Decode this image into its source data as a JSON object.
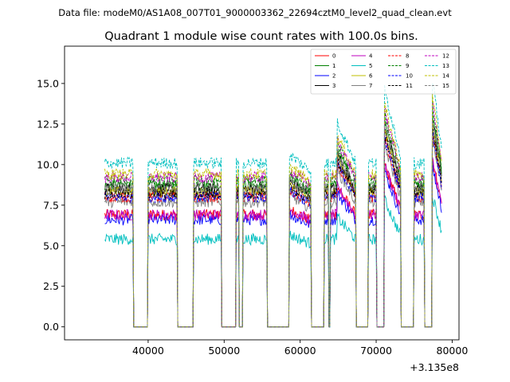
{
  "chart_data": {
    "type": "line",
    "suptitle": "Data file: modeM0/AS1A08_007T01_9000003362_22694cztM0_level2_quad_clean.evt",
    "title": "Quadrant 1 module wise count rates with 100.0s bins.",
    "xlabel": "",
    "ylabel": "",
    "x_offset_label": "+3.135e8",
    "xlim": [
      29000,
      80900
    ],
    "ylim": [
      -0.8,
      17.3
    ],
    "x_ticks": [
      40000,
      50000,
      60000,
      70000,
      80000
    ],
    "x_tick_labels": [
      "40000",
      "50000",
      "60000",
      "70000",
      "80000"
    ],
    "y_ticks": [
      0.0,
      2.5,
      5.0,
      7.5,
      10.0,
      12.5,
      15.0
    ],
    "y_tick_labels": [
      "0.0",
      "2.5",
      "5.0",
      "7.5",
      "10.0",
      "12.5",
      "15.0"
    ],
    "legend_position": "upper-right",
    "segments": [
      {
        "start": 34300,
        "end": 38000,
        "trend": [
          0.0,
          0.0
        ]
      },
      {
        "start": 40000,
        "end": 43800,
        "trend": [
          0.0,
          0.0
        ]
      },
      {
        "start": 46000,
        "end": 49600,
        "trend": [
          0.0,
          0.0
        ]
      },
      {
        "start": 51600,
        "end": 51900,
        "trend": [
          0.0,
          0.0
        ]
      },
      {
        "start": 52500,
        "end": 55600,
        "trend": [
          0.0,
          0.0
        ]
      },
      {
        "start": 58600,
        "end": 61400,
        "trend": [
          0.05,
          -0.05
        ]
      },
      {
        "start": 63200,
        "end": 63700,
        "trend": [
          0.0,
          0.0
        ]
      },
      {
        "start": 64000,
        "end": 64800,
        "trend": [
          0.0,
          0.0
        ]
      },
      {
        "start": 64900,
        "end": 67300,
        "trend": [
          0.25,
          0.0
        ]
      },
      {
        "start": 69000,
        "end": 70000,
        "trend": [
          0.0,
          0.0
        ]
      },
      {
        "start": 71100,
        "end": 73200,
        "trend": [
          0.45,
          0.05
        ]
      },
      {
        "start": 75000,
        "end": 76300,
        "trend": [
          0.0,
          0.0
        ]
      },
      {
        "start": 77400,
        "end": 78600,
        "trend": [
          0.5,
          0.1
        ]
      }
    ],
    "series": [
      {
        "name": "0",
        "color": "#ff0000",
        "dash": "solid",
        "base": 6.9
      },
      {
        "name": "1",
        "color": "#008000",
        "dash": "solid",
        "base": 8.7
      },
      {
        "name": "2",
        "color": "#0000ff",
        "dash": "solid",
        "base": 6.6
      },
      {
        "name": "3",
        "color": "#000000",
        "dash": "solid",
        "base": 8.5
      },
      {
        "name": "4",
        "color": "#bf00bf",
        "dash": "solid",
        "base": 6.9
      },
      {
        "name": "5",
        "color": "#00bfbf",
        "dash": "solid",
        "base": 5.4
      },
      {
        "name": "6",
        "color": "#bfbf00",
        "dash": "solid",
        "base": 8.3
      },
      {
        "name": "7",
        "color": "#808080",
        "dash": "solid",
        "base": 7.7
      },
      {
        "name": "8",
        "color": "#ff0000",
        "dash": "dashed",
        "base": 8.0
      },
      {
        "name": "9",
        "color": "#008000",
        "dash": "dashed",
        "base": 9.0
      },
      {
        "name": "10",
        "color": "#0000ff",
        "dash": "dashed",
        "base": 8.0
      },
      {
        "name": "11",
        "color": "#000000",
        "dash": "dashed",
        "base": 8.2
      },
      {
        "name": "12",
        "color": "#bf00bf",
        "dash": "dashed",
        "base": 9.2
      },
      {
        "name": "13",
        "color": "#00bfbf",
        "dash": "dashed",
        "base": 10.1
      },
      {
        "name": "14",
        "color": "#bfbf00",
        "dash": "dashed",
        "base": 9.4
      },
      {
        "name": "15",
        "color": "#808080",
        "dash": "dashed",
        "base": 8.6
      }
    ]
  }
}
